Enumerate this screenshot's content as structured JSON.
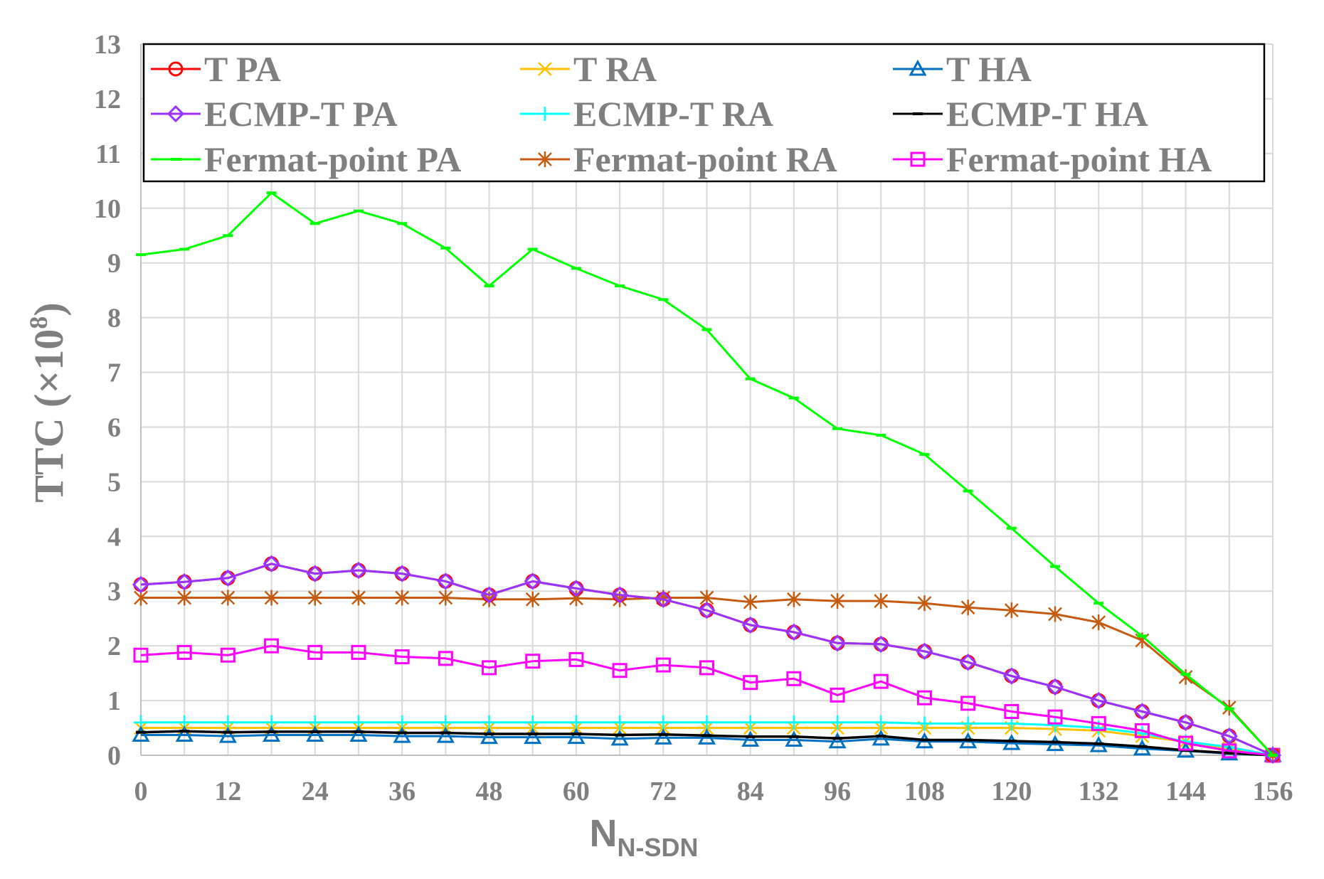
{
  "chart_data": {
    "type": "line",
    "title": "",
    "xlabel": "N",
    "xlabel_subscript": "N-SDN",
    "ylabel": "TTC (×10",
    "ylabel_superscript": "8",
    "ylabel_close": ")",
    "xlim": [
      0,
      156
    ],
    "ylim": [
      0,
      13
    ],
    "x_ticks": [
      0,
      12,
      24,
      36,
      48,
      60,
      72,
      84,
      96,
      108,
      120,
      132,
      144,
      156
    ],
    "y_ticks": [
      0,
      1,
      2,
      3,
      4,
      5,
      6,
      7,
      8,
      9,
      10,
      11,
      12,
      13
    ],
    "grid": true,
    "legend_position": "top",
    "x": [
      0,
      6,
      12,
      18,
      24,
      30,
      36,
      42,
      48,
      54,
      60,
      66,
      72,
      78,
      84,
      90,
      96,
      102,
      108,
      114,
      120,
      126,
      132,
      138,
      144,
      150,
      156
    ],
    "series": [
      {
        "name": "T PA",
        "color": "#ff0000",
        "marker": "circle",
        "values": [
          3.12,
          3.17,
          3.24,
          3.5,
          3.32,
          3.38,
          3.32,
          3.18,
          2.93,
          3.18,
          3.05,
          2.93,
          2.85,
          2.65,
          2.38,
          2.25,
          2.05,
          2.03,
          1.9,
          1.7,
          1.45,
          1.25,
          1.0,
          0.8,
          0.6,
          0.35,
          0.0
        ]
      },
      {
        "name": "T RA",
        "color": "#ffc000",
        "marker": "x",
        "values": [
          0.5,
          0.5,
          0.5,
          0.5,
          0.5,
          0.5,
          0.5,
          0.5,
          0.5,
          0.5,
          0.5,
          0.5,
          0.5,
          0.5,
          0.5,
          0.5,
          0.5,
          0.5,
          0.5,
          0.5,
          0.5,
          0.48,
          0.45,
          0.35,
          0.25,
          0.12,
          0.0
        ]
      },
      {
        "name": "T HA",
        "color": "#0070c0",
        "marker": "triangle",
        "values": [
          0.37,
          0.37,
          0.35,
          0.37,
          0.37,
          0.37,
          0.35,
          0.35,
          0.33,
          0.33,
          0.33,
          0.3,
          0.32,
          0.32,
          0.28,
          0.28,
          0.25,
          0.3,
          0.25,
          0.25,
          0.22,
          0.2,
          0.18,
          0.12,
          0.08,
          0.03,
          0.0
        ]
      },
      {
        "name": "ECMP-T PA",
        "color": "#9933ff",
        "marker": "diamond",
        "values": [
          3.12,
          3.17,
          3.24,
          3.5,
          3.32,
          3.38,
          3.32,
          3.18,
          2.93,
          3.18,
          3.05,
          2.93,
          2.85,
          2.65,
          2.38,
          2.25,
          2.05,
          2.03,
          1.9,
          1.7,
          1.45,
          1.25,
          1.0,
          0.8,
          0.6,
          0.35,
          0.0
        ]
      },
      {
        "name": "ECMP-T RA",
        "color": "#00ffff",
        "marker": "plus",
        "values": [
          0.6,
          0.6,
          0.6,
          0.6,
          0.6,
          0.6,
          0.6,
          0.6,
          0.6,
          0.6,
          0.6,
          0.6,
          0.6,
          0.6,
          0.6,
          0.6,
          0.6,
          0.6,
          0.58,
          0.58,
          0.58,
          0.55,
          0.5,
          0.4,
          0.25,
          0.15,
          0.0
        ]
      },
      {
        "name": "ECMP-T HA",
        "color": "#000000",
        "marker": "dash",
        "values": [
          0.42,
          0.44,
          0.42,
          0.43,
          0.43,
          0.43,
          0.41,
          0.41,
          0.39,
          0.39,
          0.39,
          0.37,
          0.38,
          0.36,
          0.34,
          0.34,
          0.31,
          0.35,
          0.28,
          0.28,
          0.26,
          0.24,
          0.21,
          0.16,
          0.09,
          0.04,
          0.0
        ]
      },
      {
        "name": "Fermat-point PA",
        "color": "#00ff00",
        "marker": "dash",
        "values": [
          9.15,
          9.25,
          9.5,
          10.28,
          9.72,
          9.95,
          9.72,
          9.27,
          8.58,
          9.25,
          8.9,
          8.58,
          8.33,
          7.78,
          6.88,
          6.53,
          5.97,
          5.85,
          5.5,
          4.83,
          4.15,
          3.45,
          2.78,
          2.18,
          1.48,
          0.85,
          0.0
        ]
      },
      {
        "name": "Fermat-point RA",
        "color": "#c55a11",
        "marker": "asterisk",
        "values": [
          2.88,
          2.88,
          2.88,
          2.88,
          2.88,
          2.88,
          2.88,
          2.88,
          2.85,
          2.85,
          2.87,
          2.85,
          2.88,
          2.88,
          2.8,
          2.85,
          2.82,
          2.82,
          2.78,
          2.7,
          2.65,
          2.58,
          2.43,
          2.1,
          1.43,
          0.87,
          0.0
        ]
      },
      {
        "name": "Fermat-point HA",
        "color": "#ff00ff",
        "marker": "square",
        "values": [
          1.83,
          1.88,
          1.83,
          2.0,
          1.88,
          1.88,
          1.8,
          1.77,
          1.6,
          1.72,
          1.75,
          1.55,
          1.65,
          1.6,
          1.33,
          1.4,
          1.1,
          1.35,
          1.05,
          0.95,
          0.8,
          0.7,
          0.58,
          0.45,
          0.22,
          0.08,
          0.0
        ]
      }
    ]
  }
}
